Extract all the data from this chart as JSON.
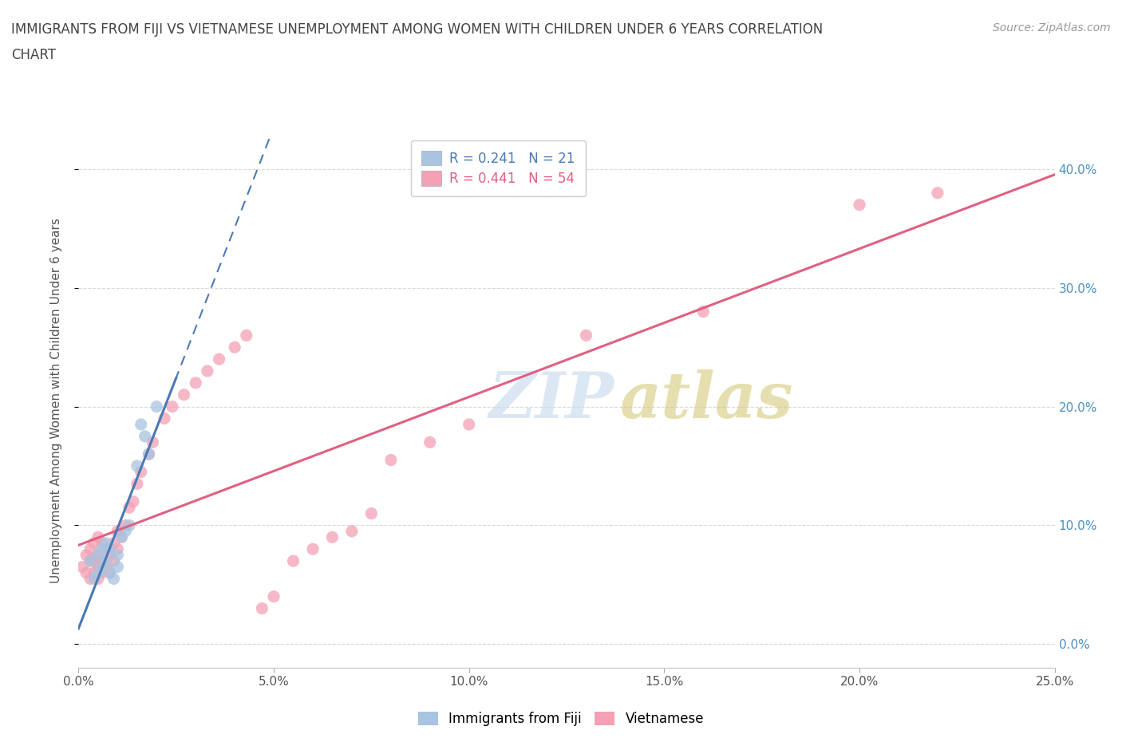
{
  "title_line1": "IMMIGRANTS FROM FIJI VS VIETNAMESE UNEMPLOYMENT AMONG WOMEN WITH CHILDREN UNDER 6 YEARS CORRELATION",
  "title_line2": "CHART",
  "source": "Source: ZipAtlas.com",
  "xlabel_ticks": [
    "0.0%",
    "5.0%",
    "10.0%",
    "15.0%",
    "20.0%",
    "25.0%"
  ],
  "ylabel_ticks_right": [
    "0.0%",
    "10.0%",
    "20.0%",
    "30.0%",
    "40.0%"
  ],
  "ylabel_label": "Unemployment Among Women with Children Under 6 years",
  "xlim": [
    0.0,
    0.25
  ],
  "ylim": [
    -0.02,
    0.43
  ],
  "fiji_R": "0.241",
  "fiji_N": "21",
  "viet_R": "0.441",
  "viet_N": "54",
  "fiji_color": "#a8c4e0",
  "viet_color": "#f4a0b5",
  "fiji_line_color": "#4a7ab5",
  "viet_line_color": "#e06080",
  "fiji_line_style": "solid",
  "viet_line_dashes": [
    8,
    4
  ],
  "right_tick_color_40": "#4a90c4",
  "right_tick_color_30": "#4a90c4",
  "right_tick_color_20": "#4a90c4",
  "right_tick_color_10": "#4a90c4",
  "right_tick_color_0": "#4a90c4",
  "fiji_scatter_x": [
    0.003,
    0.004,
    0.005,
    0.005,
    0.006,
    0.006,
    0.007,
    0.007,
    0.008,
    0.008,
    0.009,
    0.01,
    0.01,
    0.011,
    0.012,
    0.013,
    0.015,
    0.016,
    0.017,
    0.018,
    0.02
  ],
  "fiji_scatter_y": [
    0.07,
    0.055,
    0.06,
    0.075,
    0.065,
    0.08,
    0.07,
    0.085,
    0.06,
    0.08,
    0.055,
    0.065,
    0.075,
    0.09,
    0.095,
    0.1,
    0.15,
    0.185,
    0.175,
    0.16,
    0.2
  ],
  "viet_scatter_x": [
    0.001,
    0.002,
    0.002,
    0.003,
    0.003,
    0.003,
    0.004,
    0.004,
    0.004,
    0.005,
    0.005,
    0.005,
    0.005,
    0.006,
    0.006,
    0.006,
    0.007,
    0.007,
    0.008,
    0.008,
    0.009,
    0.009,
    0.01,
    0.01,
    0.011,
    0.012,
    0.013,
    0.014,
    0.015,
    0.016,
    0.018,
    0.019,
    0.022,
    0.024,
    0.027,
    0.03,
    0.033,
    0.036,
    0.04,
    0.043,
    0.047,
    0.05,
    0.055,
    0.06,
    0.065,
    0.07,
    0.075,
    0.08,
    0.09,
    0.1,
    0.13,
    0.16,
    0.2,
    0.22
  ],
  "viet_scatter_y": [
    0.065,
    0.06,
    0.075,
    0.055,
    0.07,
    0.08,
    0.06,
    0.07,
    0.085,
    0.055,
    0.065,
    0.075,
    0.09,
    0.06,
    0.07,
    0.085,
    0.065,
    0.08,
    0.06,
    0.075,
    0.07,
    0.085,
    0.08,
    0.095,
    0.09,
    0.1,
    0.115,
    0.12,
    0.135,
    0.145,
    0.16,
    0.17,
    0.19,
    0.2,
    0.21,
    0.22,
    0.23,
    0.24,
    0.25,
    0.26,
    0.03,
    0.04,
    0.07,
    0.08,
    0.09,
    0.095,
    0.11,
    0.155,
    0.17,
    0.185,
    0.26,
    0.28,
    0.37,
    0.38
  ],
  "background_color": "#ffffff",
  "grid_color": "#d8d8d8",
  "grid_style": "dashed",
  "title_color": "#555555",
  "tick_color": "#555555",
  "scatter_size": 120,
  "scatter_alpha": 0.75
}
